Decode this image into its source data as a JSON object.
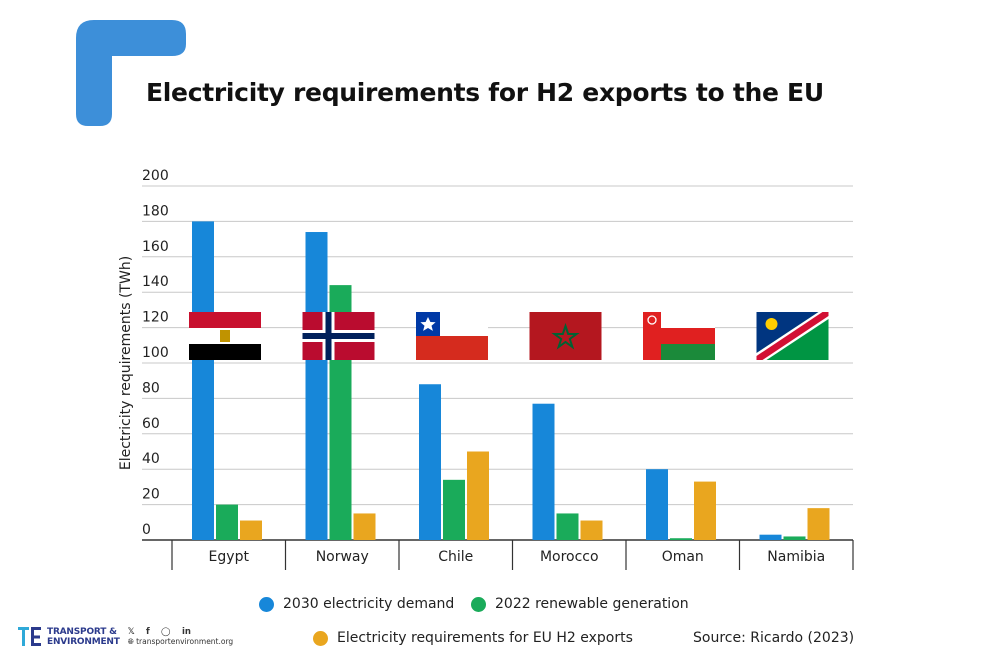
{
  "title": "Electricity requirements for H2 exports to the EU",
  "source": "Source: Ricardo (2023)",
  "colors": {
    "brand_blue": "#3d8fd9",
    "demand": "#1787d9",
    "renewable": "#1aab5a",
    "exports": "#e9a61f",
    "grid": "#c8c8c8"
  },
  "legend": [
    {
      "label": "2030 electricity demand",
      "color": "#1787d9"
    },
    {
      "label": "2022 renewable generation",
      "color": "#1aab5a"
    },
    {
      "label": "Electricity requirements for EU H2 exports",
      "color": "#e9a61f"
    }
  ],
  "footer": {
    "org_line1": "TRANSPORT &",
    "org_line2": "ENVIRONMENT",
    "website": "transportenvironment.org",
    "social_icons": [
      "twitter-icon",
      "facebook-icon",
      "instagram-icon",
      "linkedin-icon"
    ]
  },
  "chart_data": {
    "type": "bar",
    "title": "Electricity requirements for H2 exports to the EU",
    "xlabel": "",
    "ylabel": "Electricity requirements (TWh)",
    "ylim": [
      0,
      200
    ],
    "yticks": [
      0,
      20,
      40,
      60,
      80,
      100,
      120,
      140,
      160,
      180,
      200
    ],
    "grid": true,
    "legend_position": "bottom",
    "categories": [
      "Egypt",
      "Norway",
      "Chile",
      "Morocco",
      "Oman",
      "Namibia"
    ],
    "flags": [
      "egypt-flag",
      "norway-flag",
      "chile-flag",
      "morocco-flag",
      "oman-flag",
      "namibia-flag"
    ],
    "series": [
      {
        "name": "2030 electricity demand",
        "color": "#1787d9",
        "values": [
          180,
          174,
          88,
          77,
          40,
          3
        ]
      },
      {
        "name": "2022 renewable generation",
        "color": "#1aab5a",
        "values": [
          20,
          144,
          34,
          15,
          1,
          2
        ]
      },
      {
        "name": "Electricity requirements for EU H2 exports",
        "color": "#e9a61f",
        "values": [
          11,
          15,
          50,
          11,
          33,
          18
        ]
      }
    ]
  }
}
